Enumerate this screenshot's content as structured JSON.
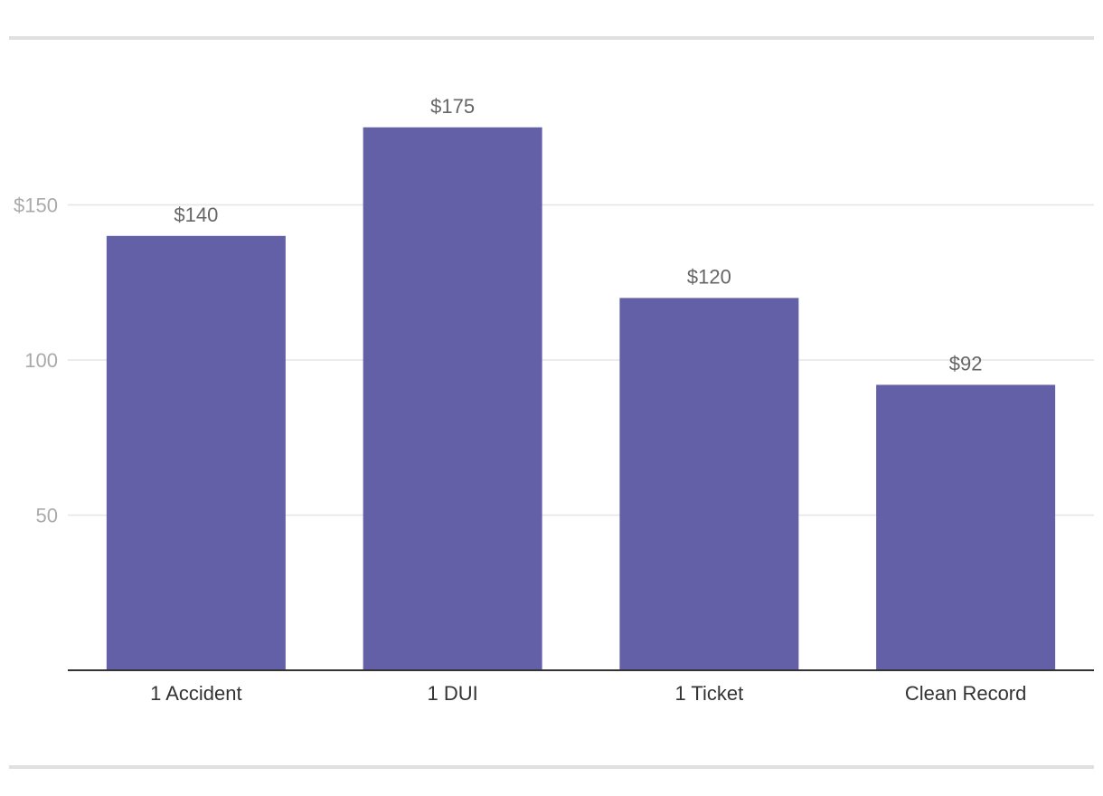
{
  "chart_data": {
    "type": "bar",
    "categories": [
      "1 Accident",
      "1 DUI",
      "1 Ticket",
      "Clean Record"
    ],
    "values": [
      140,
      175,
      120,
      92
    ],
    "data_labels": [
      "$140",
      "$175",
      "$120",
      "$92"
    ],
    "y_ticks": [
      {
        "value": 50,
        "label": "50"
      },
      {
        "value": 100,
        "label": "100"
      },
      {
        "value": 150,
        "label": "$150"
      }
    ],
    "ylim": [
      0,
      175
    ],
    "grid": true,
    "legend": "none",
    "title": "",
    "xlabel": "",
    "ylabel": "",
    "colors": {
      "bar": "#6460a8",
      "grid": "#e6e6e6",
      "axis": "#333333",
      "rule": "#e0e0e0"
    }
  }
}
